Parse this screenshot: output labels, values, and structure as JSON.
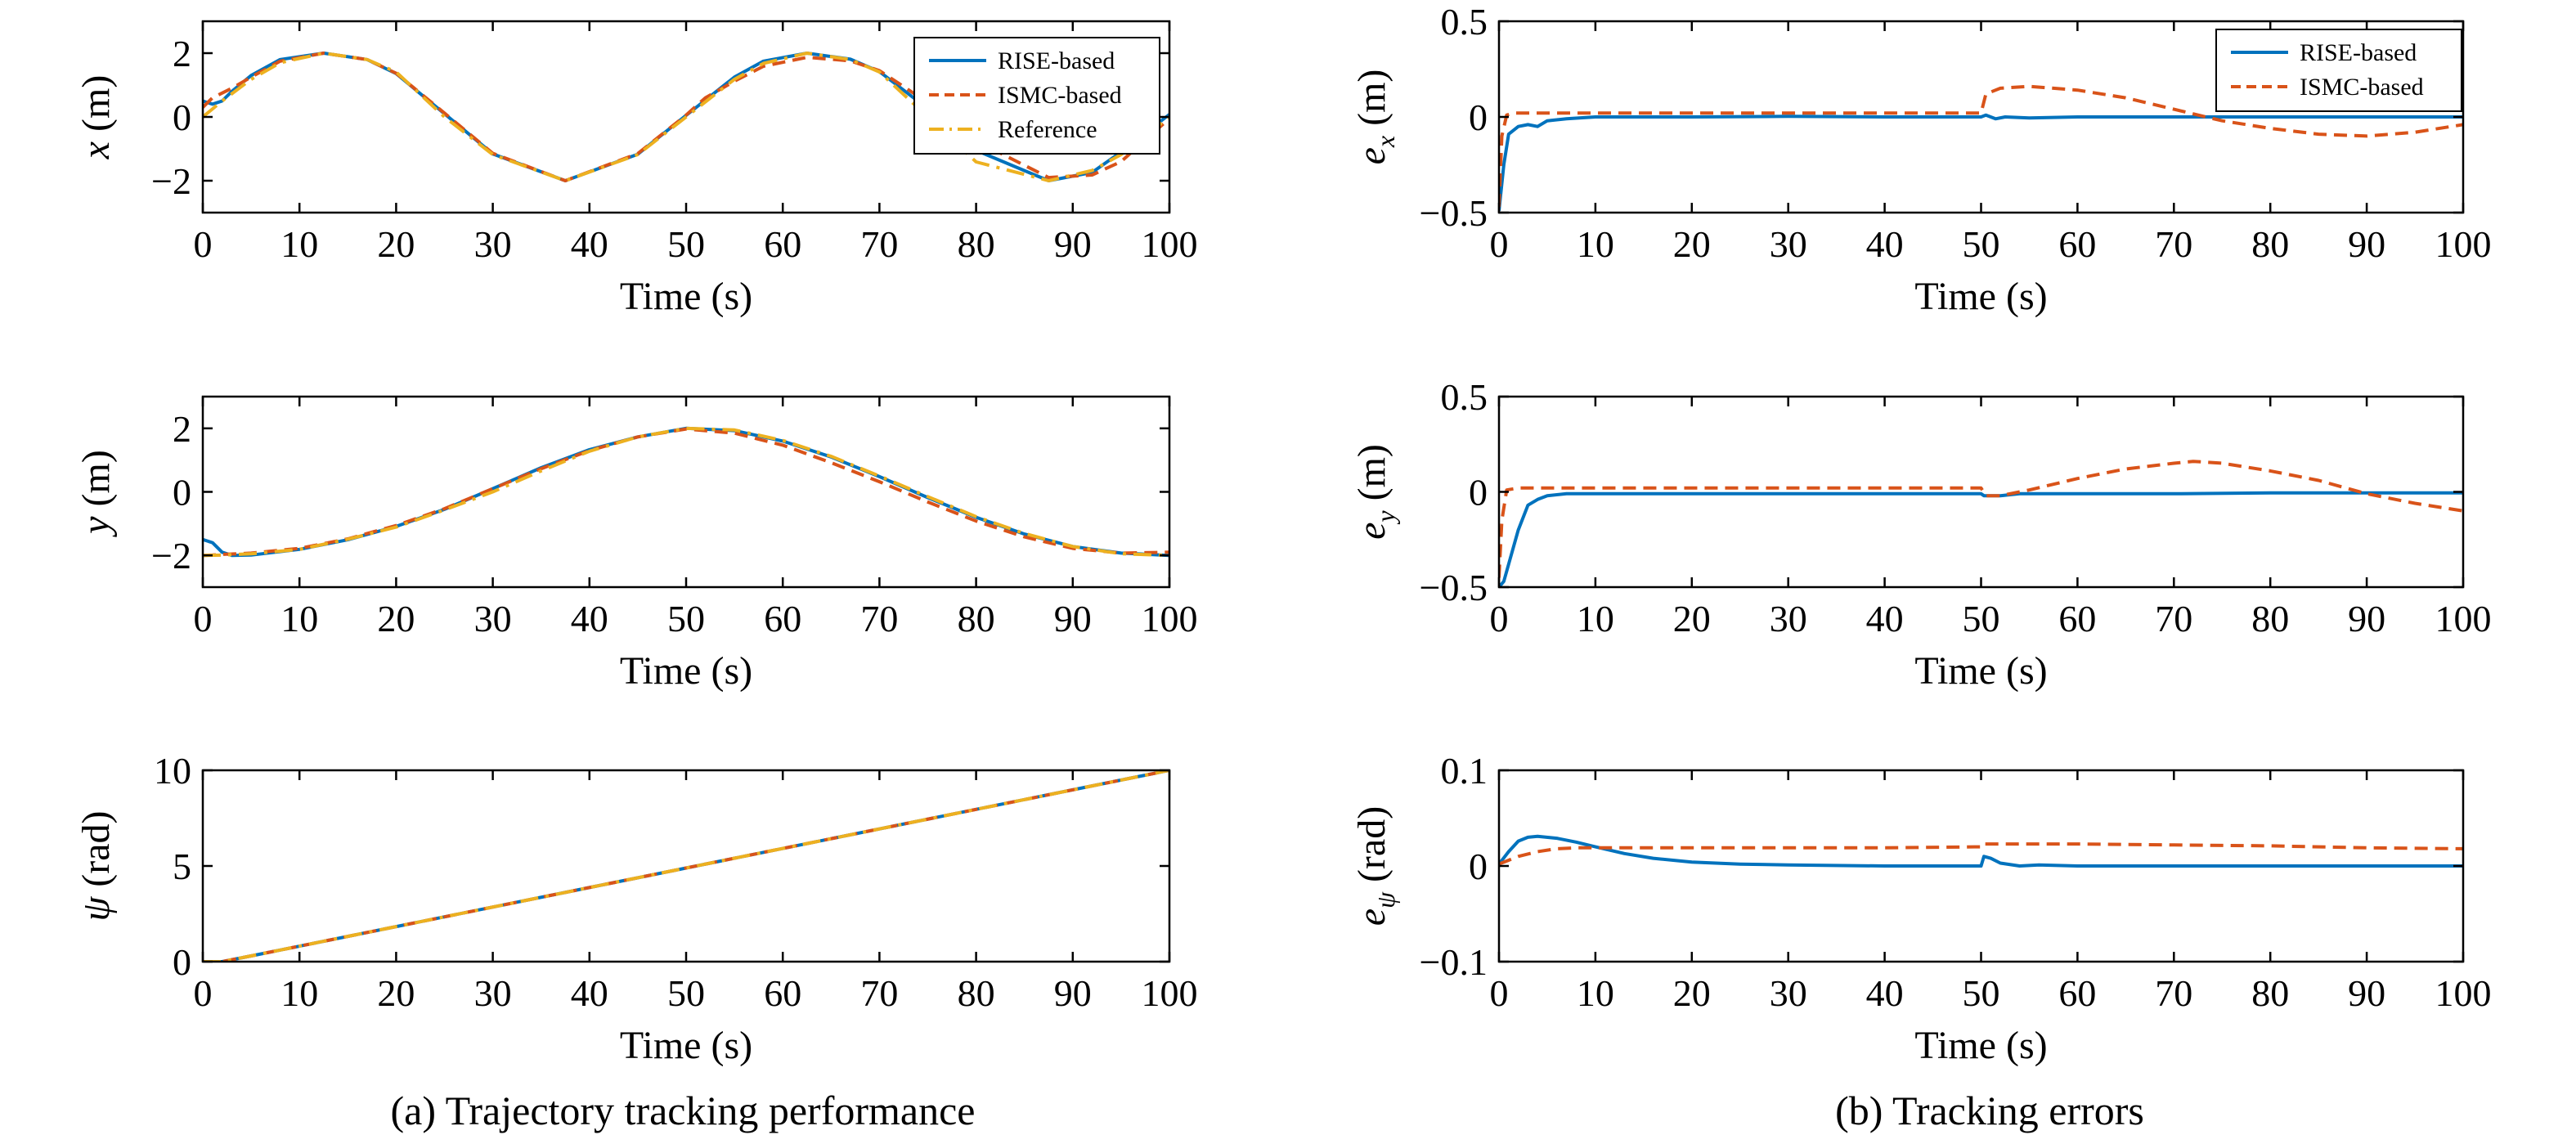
{
  "captions": {
    "left": "(a) Trajectory tracking performance",
    "right": "(b) Tracking errors"
  },
  "colors": {
    "rise": "#0072BD",
    "ismc": "#D95319",
    "reference": "#EDB120"
  },
  "chart_data": [
    {
      "id": "x",
      "type": "line",
      "xlabel": "Time (s)",
      "ylabel": {
        "sym": "x",
        "unit": " (m)"
      },
      "xlim": [
        0,
        100
      ],
      "ylim": [
        -3,
        3
      ],
      "xticks": [
        0,
        10,
        20,
        30,
        40,
        50,
        60,
        70,
        80,
        90,
        100
      ],
      "yticks": [
        -2,
        0,
        2
      ],
      "ytick_labels": [
        "−2",
        "0",
        "2"
      ],
      "grid": false,
      "legend": "top-right",
      "series": [
        {
          "name": "RISE-based",
          "color": "#0072BD",
          "style": "solid",
          "x": [
            0,
            1,
            2,
            3,
            5,
            8,
            12.5,
            17,
            20,
            25,
            30,
            37.5,
            45,
            50,
            55,
            58,
            62.5,
            67,
            70,
            75,
            80,
            87.5,
            92,
            95,
            100
          ],
          "y": [
            0.5,
            0.4,
            0.5,
            0.8,
            1.3,
            1.8,
            2.0,
            1.8,
            1.36,
            0.1,
            -1.16,
            -2.0,
            -1.17,
            0.05,
            1.25,
            1.75,
            2.0,
            1.81,
            1.42,
            0.26,
            -1.05,
            -2.0,
            -1.74,
            -1.1,
            0.08
          ]
        },
        {
          "name": "ISMC-based",
          "color": "#D95319",
          "style": "dashed",
          "x": [
            0,
            1,
            2,
            3,
            5,
            8,
            12.5,
            17,
            20,
            25,
            30,
            37.5,
            45,
            50,
            52,
            55,
            58,
            62.5,
            67,
            70,
            75,
            80,
            87.5,
            92,
            95,
            100
          ],
          "y": [
            0.3,
            0.6,
            0.75,
            0.9,
            1.25,
            1.75,
            2.0,
            1.8,
            1.37,
            0.12,
            -1.14,
            -2.0,
            -1.15,
            0.06,
            0.6,
            1.12,
            1.59,
            1.87,
            1.76,
            1.45,
            0.45,
            -0.75,
            -1.9,
            -1.82,
            -1.4,
            -0.05
          ]
        },
        {
          "name": "Reference",
          "color": "#EDB120",
          "style": "dashdot",
          "x": [
            0,
            2,
            5,
            8,
            12.5,
            17,
            20,
            25,
            30,
            37.5,
            45,
            50,
            55,
            58,
            62.5,
            67,
            70,
            75,
            80,
            87.5,
            92,
            95,
            100
          ],
          "y": [
            0.0,
            0.5,
            1.18,
            1.7,
            2.0,
            1.8,
            1.41,
            0.0,
            -1.18,
            -2.0,
            -1.18,
            0.0,
            1.18,
            1.68,
            2.0,
            1.8,
            1.41,
            0.0,
            -1.41,
            -2.0,
            -1.68,
            -1.18,
            0.0
          ]
        }
      ]
    },
    {
      "id": "y",
      "type": "line",
      "xlabel": "Time (s)",
      "ylabel": {
        "sym": "y",
        "unit": " (m)"
      },
      "xlim": [
        0,
        100
      ],
      "ylim": [
        -3,
        3
      ],
      "xticks": [
        0,
        10,
        20,
        30,
        40,
        50,
        60,
        70,
        80,
        90,
        100
      ],
      "yticks": [
        -2,
        0,
        2
      ],
      "ytick_labels": [
        "−2",
        "0",
        "2"
      ],
      "grid": false,
      "series": [
        {
          "name": "RISE-based",
          "color": "#0072BD",
          "style": "solid",
          "x": [
            0,
            1,
            2,
            3,
            5,
            10,
            15,
            20,
            25,
            30,
            35,
            40,
            45,
            50,
            55,
            60,
            65,
            70,
            75,
            80,
            85,
            90,
            95,
            100
          ],
          "y": [
            -1.5,
            -1.6,
            -1.9,
            -2.0,
            -1.99,
            -1.81,
            -1.51,
            -1.09,
            -0.55,
            0.1,
            0.76,
            1.33,
            1.73,
            2.0,
            1.93,
            1.6,
            1.1,
            0.48,
            -0.18,
            -0.8,
            -1.33,
            -1.72,
            -1.93,
            -2.0
          ]
        },
        {
          "name": "ISMC-based",
          "color": "#D95319",
          "style": "dashed",
          "x": [
            0,
            1,
            2,
            5,
            10,
            15,
            20,
            25,
            30,
            35,
            40,
            45,
            50,
            55,
            60,
            65,
            70,
            75,
            80,
            85,
            90,
            95,
            100
          ],
          "y": [
            -2.0,
            -1.99,
            -1.97,
            -1.93,
            -1.78,
            -1.48,
            -1.06,
            -0.53,
            0.1,
            0.73,
            1.3,
            1.73,
            1.98,
            1.85,
            1.47,
            0.92,
            0.32,
            -0.32,
            -0.92,
            -1.42,
            -1.78,
            -1.93,
            -1.9
          ]
        },
        {
          "name": "Reference",
          "color": "#EDB120",
          "style": "dashdot",
          "x": [
            0,
            2,
            5,
            10,
            15,
            20,
            25,
            30,
            35,
            40,
            45,
            50,
            55,
            60,
            65,
            70,
            75,
            80,
            85,
            90,
            95,
            100
          ],
          "y": [
            -2.0,
            -1.99,
            -1.95,
            -1.81,
            -1.49,
            -1.11,
            -0.57,
            0.0,
            0.66,
            1.28,
            1.73,
            2.0,
            1.95,
            1.62,
            1.12,
            0.5,
            -0.15,
            -0.78,
            -1.31,
            -1.72,
            -1.95,
            -2.0
          ]
        }
      ]
    },
    {
      "id": "psi",
      "type": "line",
      "xlabel": "Time (s)",
      "ylabel": {
        "sym": "ψ",
        "unit": " (rad)"
      },
      "xlim": [
        0,
        100
      ],
      "ylim": [
        0,
        10
      ],
      "xticks": [
        0,
        10,
        20,
        30,
        40,
        50,
        60,
        70,
        80,
        90,
        100
      ],
      "yticks": [
        0,
        5,
        10
      ],
      "ytick_labels": [
        "0",
        "5",
        "10"
      ],
      "grid": false,
      "series": [
        {
          "name": "RISE-based",
          "color": "#0072BD",
          "style": "solid",
          "x": [
            0,
            2,
            5,
            100
          ],
          "y": [
            0.0,
            0.0,
            0.3,
            10.0
          ]
        },
        {
          "name": "ISMC-based",
          "color": "#D95319",
          "style": "dashed",
          "x": [
            0,
            2,
            5,
            100
          ],
          "y": [
            0.0,
            0.0,
            0.3,
            10.0
          ]
        },
        {
          "name": "Reference",
          "color": "#EDB120",
          "style": "dashdot",
          "x": [
            0,
            2,
            5,
            100
          ],
          "y": [
            0.0,
            0.0,
            0.3,
            10.0
          ]
        }
      ]
    },
    {
      "id": "ex",
      "type": "line",
      "xlabel": "Time (s)",
      "ylabel": {
        "sym": "e",
        "sub": "x",
        "unit": " (m)"
      },
      "xlim": [
        0,
        100
      ],
      "ylim": [
        -0.5,
        0.5
      ],
      "xticks": [
        0,
        10,
        20,
        30,
        40,
        50,
        60,
        70,
        80,
        90,
        100
      ],
      "yticks": [
        -0.5,
        0,
        0.5
      ],
      "ytick_labels": [
        "−0.5",
        "0",
        "0.5"
      ],
      "grid": false,
      "legend": "top-right",
      "series": [
        {
          "name": "RISE-based",
          "color": "#0072BD",
          "style": "solid",
          "x": [
            0,
            0.5,
            1,
            2,
            3,
            4,
            5,
            7,
            10,
            20,
            30,
            40,
            50,
            50.5,
            51.5,
            52.5,
            55,
            60,
            70,
            80,
            90,
            100
          ],
          "y": [
            -0.49,
            -0.25,
            -0.09,
            -0.05,
            -0.04,
            -0.05,
            -0.02,
            -0.01,
            0.0,
            0.0,
            0.003,
            0.0,
            0.0,
            0.01,
            -0.01,
            0.0,
            -0.005,
            0.0,
            0.0,
            0.0,
            0.0,
            0.0
          ]
        },
        {
          "name": "ISMC-based",
          "color": "#D95319",
          "style": "dashed",
          "x": [
            0,
            0.3,
            0.8,
            1.5,
            2,
            5,
            10,
            20,
            30,
            40,
            49.5,
            50,
            50.5,
            52,
            55,
            60,
            65,
            70,
            75,
            80,
            85,
            90,
            95,
            100
          ],
          "y": [
            -0.47,
            -0.1,
            0.01,
            0.02,
            0.02,
            0.02,
            0.02,
            0.02,
            0.02,
            0.02,
            0.02,
            0.02,
            0.12,
            0.15,
            0.16,
            0.14,
            0.1,
            0.04,
            -0.02,
            -0.06,
            -0.09,
            -0.1,
            -0.08,
            -0.04
          ]
        }
      ]
    },
    {
      "id": "ey",
      "type": "line",
      "xlabel": "Time (s)",
      "ylabel": {
        "sym": "e",
        "sub": "y",
        "unit": " (m)"
      },
      "xlim": [
        0,
        100
      ],
      "ylim": [
        -0.5,
        0.5
      ],
      "xticks": [
        0,
        10,
        20,
        30,
        40,
        50,
        60,
        70,
        80,
        90,
        100
      ],
      "yticks": [
        -0.5,
        0,
        0.5
      ],
      "ytick_labels": [
        "−0.5",
        "0",
        "0.5"
      ],
      "grid": false,
      "series": [
        {
          "name": "RISE-based",
          "color": "#0072BD",
          "style": "solid",
          "x": [
            0,
            0.5,
            1,
            2,
            3,
            4,
            5,
            7,
            10,
            20,
            30,
            40,
            50,
            50.3,
            52,
            54,
            60,
            70,
            80,
            90,
            100
          ],
          "y": [
            -0.5,
            -0.47,
            -0.38,
            -0.2,
            -0.07,
            -0.04,
            -0.02,
            -0.01,
            -0.01,
            -0.01,
            -0.01,
            -0.01,
            -0.01,
            -0.02,
            -0.02,
            -0.01,
            -0.01,
            -0.01,
            -0.005,
            -0.005,
            -0.005
          ]
        },
        {
          "name": "ISMC-based",
          "color": "#D95319",
          "style": "dashed",
          "x": [
            0,
            0.3,
            0.8,
            2,
            5,
            10,
            20,
            30,
            40,
            50,
            50.5,
            52,
            55,
            60,
            65,
            70,
            72,
            75,
            80,
            85,
            90,
            95,
            100
          ],
          "y": [
            -0.45,
            -0.15,
            0.01,
            0.02,
            0.02,
            0.02,
            0.02,
            0.02,
            0.02,
            0.02,
            -0.02,
            -0.02,
            0.01,
            0.07,
            0.12,
            0.15,
            0.16,
            0.15,
            0.11,
            0.06,
            -0.01,
            -0.06,
            -0.1
          ]
        }
      ]
    },
    {
      "id": "epsi",
      "type": "line",
      "xlabel": "Time (s)",
      "ylabel": {
        "sym": "e",
        "sub": "ψ",
        "unit": " (rad)"
      },
      "xlim": [
        0,
        100
      ],
      "ylim": [
        -0.1,
        0.1
      ],
      "xticks": [
        0,
        10,
        20,
        30,
        40,
        50,
        60,
        70,
        80,
        90,
        100
      ],
      "yticks": [
        -0.1,
        0,
        0.1
      ],
      "ytick_labels": [
        "−0.1",
        "0",
        "0.1"
      ],
      "grid": false,
      "series": [
        {
          "name": "RISE-based",
          "color": "#0072BD",
          "style": "solid",
          "x": [
            0,
            1,
            2,
            3,
            4,
            6,
            8,
            10,
            13,
            16,
            20,
            25,
            30,
            40,
            50,
            50.3,
            51,
            52,
            54,
            56,
            60,
            70,
            80,
            90,
            100
          ],
          "y": [
            0.002,
            0.015,
            0.026,
            0.03,
            0.031,
            0.029,
            0.025,
            0.02,
            0.013,
            0.008,
            0.004,
            0.002,
            0.001,
            0.0,
            0.0,
            0.01,
            0.008,
            0.003,
            0.0,
            0.001,
            0.0,
            0.0,
            0.0,
            0.0,
            0.0
          ]
        },
        {
          "name": "ISMC-based",
          "color": "#D95319",
          "style": "dashed",
          "x": [
            0,
            1,
            2,
            4,
            6,
            8,
            10,
            20,
            30,
            40,
            49.9,
            50,
            55,
            60,
            70,
            80,
            90,
            100
          ],
          "y": [
            0.002,
            0.006,
            0.01,
            0.015,
            0.018,
            0.019,
            0.019,
            0.019,
            0.019,
            0.019,
            0.02,
            0.023,
            0.023,
            0.023,
            0.022,
            0.021,
            0.019,
            0.018
          ]
        }
      ]
    }
  ]
}
